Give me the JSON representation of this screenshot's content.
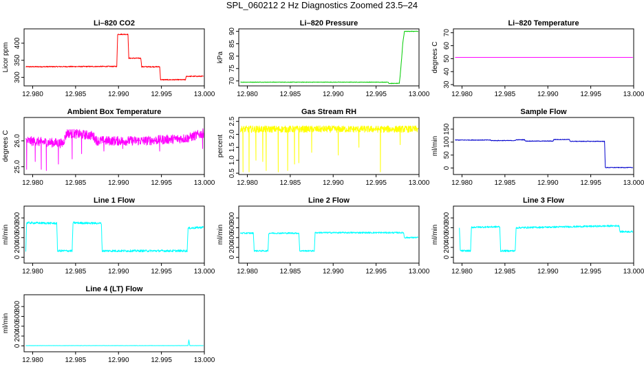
{
  "figure_title": "SPL_060212  2 Hz Diagnostics Zoomed 23.5–24",
  "chart_data": [
    {
      "id": "co2",
      "type": "line",
      "title": "Li–820 CO2",
      "ylabel": "Licor ppm",
      "color": "#ff0000",
      "xlim": [
        12.979,
        13.0
      ],
      "ylim": [
        275,
        442
      ],
      "xticks": [
        12.98,
        12.985,
        12.99,
        12.995,
        13.0
      ],
      "xtick_labels": [
        "12.980",
        "12.985",
        "12.990",
        "12.995",
        "13.000"
      ],
      "yticks": [
        300,
        350,
        400
      ],
      "ytick_labels": [
        "300",
        "350",
        "400"
      ],
      "points": [
        [
          12.9792,
          331
        ],
        [
          12.9898,
          332
        ],
        [
          12.9899,
          426
        ],
        [
          12.9911,
          426
        ],
        [
          12.9912,
          356
        ],
        [
          12.9926,
          356
        ],
        [
          12.9927,
          331
        ],
        [
          12.9948,
          331
        ],
        [
          12.9949,
          293
        ],
        [
          12.9978,
          293
        ],
        [
          12.9979,
          303
        ],
        [
          12.9999,
          303
        ]
      ],
      "noise": 1.5
    },
    {
      "id": "pressure",
      "type": "line",
      "title": "Li–820 Pressure",
      "ylabel": "kPa",
      "color": "#00cc00",
      "xlim": [
        12.979,
        13.0
      ],
      "ylim": [
        68,
        91
      ],
      "xticks": [
        12.98,
        12.985,
        12.99,
        12.995,
        13.0
      ],
      "xtick_labels": [
        "12.980",
        "12.985",
        "12.990",
        "12.995",
        "13.000"
      ],
      "yticks": [
        70,
        75,
        80,
        85,
        90
      ],
      "ytick_labels": [
        "70",
        "75",
        "80",
        "85",
        "90"
      ],
      "points": [
        [
          12.9792,
          69.5
        ],
        [
          12.9964,
          69.5
        ],
        [
          12.9965,
          69
        ],
        [
          12.9977,
          69
        ],
        [
          12.9978,
          72
        ],
        [
          12.998,
          80
        ],
        [
          12.9981,
          85
        ],
        [
          12.9983,
          90
        ],
        [
          12.9999,
          90
        ]
      ],
      "noise": 0.1
    },
    {
      "id": "temperature",
      "type": "line",
      "title": "Li–820 Temperature",
      "ylabel": "degrees C",
      "color": "#ff00ff",
      "xlim": [
        12.979,
        13.0
      ],
      "ylim": [
        29,
        73
      ],
      "xticks": [
        12.98,
        12.985,
        12.99,
        12.995,
        13.0
      ],
      "xtick_labels": [
        "12.980",
        "12.985",
        "12.990",
        "12.995",
        "13.000"
      ],
      "yticks": [
        30,
        40,
        50,
        60,
        70
      ],
      "ytick_labels": [
        "30",
        "40",
        "50",
        "60",
        "70"
      ],
      "points": [
        [
          12.9792,
          51
        ],
        [
          12.9999,
          51
        ]
      ],
      "noise": 0
    },
    {
      "id": "ambient",
      "type": "line",
      "title": "Ambient Box Temperature",
      "ylabel": "degrees C",
      "color": "#ff00ff",
      "xlim": [
        12.979,
        13.0
      ],
      "ylim": [
        24.7,
        26.9
      ],
      "xticks": [
        12.98,
        12.985,
        12.99,
        12.995,
        13.0
      ],
      "xtick_labels": [
        "12.980",
        "12.985",
        "12.990",
        "12.995",
        "13.000"
      ],
      "yticks": [
        25.0,
        26.0
      ],
      "ytick_labels": [
        "25.0",
        "26.0"
      ],
      "points": [
        [
          12.9792,
          26.0
        ],
        [
          12.9835,
          25.9
        ],
        [
          12.984,
          26.3
        ],
        [
          12.987,
          26.2
        ],
        [
          12.9875,
          26.0
        ],
        [
          12.993,
          26.0
        ],
        [
          12.998,
          26.1
        ],
        [
          12.9999,
          26.3
        ]
      ],
      "noise": 0.18,
      "spikes": [
        [
          12.9793,
          24.9
        ],
        [
          12.9803,
          25.2
        ],
        [
          12.981,
          24.9
        ],
        [
          12.9816,
          24.85
        ],
        [
          12.983,
          25.1
        ],
        [
          12.9846,
          25.3
        ],
        [
          12.9857,
          25.5
        ],
        [
          12.9883,
          25.6
        ],
        [
          12.9905,
          25.7
        ],
        [
          12.9948,
          25.6
        ],
        [
          12.9998,
          25.7
        ]
      ]
    },
    {
      "id": "rh",
      "type": "line",
      "title": "Gas Stream RH",
      "ylabel": "percent",
      "color": "#ffff00",
      "xlim": [
        12.979,
        13.0
      ],
      "ylim": [
        0.45,
        2.65
      ],
      "xticks": [
        12.98,
        12.985,
        12.99,
        12.995,
        13.0
      ],
      "xtick_labels": [
        "12.980",
        "12.985",
        "12.990",
        "12.995",
        "13.000"
      ],
      "yticks": [
        0.5,
        1.0,
        1.5,
        2.0,
        2.5
      ],
      "ytick_labels": [
        "0.5",
        "1.0",
        "1.5",
        "2.0",
        "2.5"
      ],
      "points": [
        [
          12.9792,
          2.2
        ],
        [
          12.9999,
          2.2
        ]
      ],
      "noise": 0.13,
      "spikes": [
        [
          12.9795,
          0.55
        ],
        [
          12.9802,
          0.55
        ],
        [
          12.981,
          1.0
        ],
        [
          12.9818,
          0.95
        ],
        [
          12.9822,
          0.6
        ],
        [
          12.9836,
          0.55
        ],
        [
          12.9847,
          0.6
        ],
        [
          12.9855,
          0.85
        ],
        [
          12.986,
          0.9
        ],
        [
          12.9875,
          1.3
        ],
        [
          12.9906,
          1.2
        ],
        [
          12.993,
          1.5
        ],
        [
          12.9955,
          0.55
        ],
        [
          12.9978,
          1.6
        ]
      ]
    },
    {
      "id": "sample",
      "type": "line",
      "title": "Sample Flow",
      "ylabel": "ml/min",
      "color": "#0000cc",
      "xlim": [
        12.979,
        13.0
      ],
      "ylim": [
        -25,
        195
      ],
      "xticks": [
        12.98,
        12.985,
        12.99,
        12.995,
        13.0
      ],
      "xtick_labels": [
        "12.980",
        "12.985",
        "12.990",
        "12.995",
        "13.000"
      ],
      "yticks": [
        0,
        50,
        100,
        150
      ],
      "ytick_labels": [
        "0",
        "50",
        "100",
        "150"
      ],
      "points": [
        [
          12.9792,
          108
        ],
        [
          12.9833,
          108
        ],
        [
          12.9834,
          106
        ],
        [
          12.9862,
          106
        ],
        [
          12.9863,
          109
        ],
        [
          12.9873,
          109
        ],
        [
          12.9874,
          104
        ],
        [
          12.9906,
          104
        ],
        [
          12.9907,
          110
        ],
        [
          12.9925,
          110
        ],
        [
          12.9926,
          103
        ],
        [
          12.9966,
          103
        ],
        [
          12.9967,
          2
        ],
        [
          12.9999,
          2
        ]
      ],
      "noise": 1.2
    },
    {
      "id": "line1",
      "type": "line",
      "title": "Line 1 Flow",
      "ylabel": "ml/min",
      "color": "#00ffff",
      "xlim": [
        12.979,
        13.0
      ],
      "ylim": [
        -120,
        1040
      ],
      "xticks": [
        12.98,
        12.985,
        12.99,
        12.995,
        13.0
      ],
      "xtick_labels": [
        "12.980",
        "12.985",
        "12.990",
        "12.995",
        "13.000"
      ],
      "yticks": [
        0,
        200,
        400,
        600,
        800
      ],
      "ytick_labels": [
        "0",
        "200",
        "400",
        "600",
        "800"
      ],
      "points": [
        [
          12.9792,
          130
        ],
        [
          12.9793,
          700
        ],
        [
          12.9828,
          690
        ],
        [
          12.9829,
          130
        ],
        [
          12.9846,
          130
        ],
        [
          12.9847,
          700
        ],
        [
          12.988,
          690
        ],
        [
          12.9881,
          130
        ],
        [
          12.998,
          130
        ],
        [
          12.9981,
          590
        ],
        [
          12.9999,
          610
        ]
      ],
      "noise": 22
    },
    {
      "id": "line2",
      "type": "line",
      "title": "Line 2 Flow",
      "ylabel": "ml/min",
      "color": "#00ffff",
      "xlim": [
        12.979,
        13.0
      ],
      "ylim": [
        -120,
        1040
      ],
      "xticks": [
        12.98,
        12.985,
        12.99,
        12.995,
        13.0
      ],
      "xtick_labels": [
        "12.980",
        "12.985",
        "12.990",
        "12.995",
        "13.000"
      ],
      "yticks": [
        0,
        200,
        400,
        600,
        800
      ],
      "ytick_labels": [
        "0",
        "200",
        "400",
        "600",
        "800"
      ],
      "points": [
        [
          12.9792,
          490
        ],
        [
          12.9807,
          490
        ],
        [
          12.9808,
          130
        ],
        [
          12.9824,
          130
        ],
        [
          12.9825,
          490
        ],
        [
          12.986,
          490
        ],
        [
          12.9861,
          130
        ],
        [
          12.9878,
          130
        ],
        [
          12.9879,
          500
        ],
        [
          12.9982,
          500
        ],
        [
          12.9983,
          400
        ],
        [
          12.9999,
          400
        ]
      ],
      "noise": 15
    },
    {
      "id": "line3",
      "type": "line",
      "title": "Line 3 Flow",
      "ylabel": "ml/min",
      "color": "#00ffff",
      "xlim": [
        12.979,
        13.0
      ],
      "ylim": [
        -120,
        1040
      ],
      "xticks": [
        12.98,
        12.985,
        12.99,
        12.995,
        13.0
      ],
      "xtick_labels": [
        "12.980",
        "12.985",
        "12.990",
        "12.995",
        "13.000"
      ],
      "yticks": [
        0,
        200,
        400,
        600,
        800
      ],
      "ytick_labels": [
        "0",
        "200",
        "400",
        "600",
        "800"
      ],
      "points": [
        [
          12.9797,
          600
        ],
        [
          12.9798,
          130
        ],
        [
          12.981,
          130
        ],
        [
          12.9811,
          610
        ],
        [
          12.9844,
          620
        ],
        [
          12.9845,
          130
        ],
        [
          12.9862,
          130
        ],
        [
          12.9863,
          600
        ],
        [
          12.9983,
          640
        ],
        [
          12.9984,
          520
        ],
        [
          12.9999,
          520
        ]
      ],
      "noise": 18
    },
    {
      "id": "line4",
      "type": "line",
      "title": "Line 4 (LT) Flow",
      "ylabel": "ml/min",
      "color": "#00ffff",
      "xlim": [
        12.979,
        13.0
      ],
      "ylim": [
        -120,
        1040
      ],
      "xticks": [
        12.98,
        12.985,
        12.99,
        12.995,
        13.0
      ],
      "xtick_labels": [
        "12.980",
        "12.985",
        "12.990",
        "12.995",
        "13.000"
      ],
      "yticks": [
        0,
        200,
        400,
        600,
        800
      ],
      "ytick_labels": [
        "0",
        "200",
        "400",
        "600",
        "800"
      ],
      "points": [
        [
          12.9792,
          5
        ],
        [
          12.9981,
          5
        ],
        [
          12.9982,
          120
        ],
        [
          12.9983,
          5
        ],
        [
          12.9999,
          5
        ]
      ],
      "noise": 2
    }
  ]
}
